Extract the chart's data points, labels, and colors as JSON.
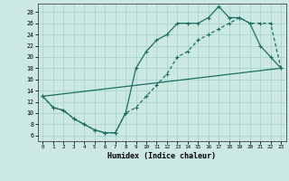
{
  "xlabel": "Humidex (Indice chaleur)",
  "background_color": "#cce8e2",
  "grid_color": "#a8d4cc",
  "line_color": "#1a6e64",
  "xlim": [
    -0.5,
    23.5
  ],
  "ylim": [
    5,
    29.5
  ],
  "xticks": [
    0,
    1,
    2,
    3,
    4,
    5,
    6,
    7,
    8,
    9,
    10,
    11,
    12,
    13,
    14,
    15,
    16,
    17,
    18,
    19,
    20,
    21,
    22,
    23
  ],
  "yticks": [
    6,
    8,
    10,
    12,
    14,
    16,
    18,
    20,
    22,
    24,
    26,
    28
  ],
  "line1_x": [
    0,
    1,
    2,
    3,
    4,
    5,
    6,
    7,
    8,
    9,
    10,
    11,
    12,
    13,
    14,
    15,
    16,
    17,
    18,
    19,
    20,
    21,
    22,
    23
  ],
  "line1_y": [
    13,
    11,
    10.5,
    9,
    8,
    7,
    6.5,
    6.5,
    10,
    18,
    21,
    23,
    24,
    26,
    26,
    26,
    27,
    29,
    27,
    27,
    26,
    22,
    20,
    18
  ],
  "line2_x": [
    0,
    1,
    2,
    3,
    4,
    5,
    6,
    7,
    8,
    9,
    10,
    11,
    12,
    13,
    14,
    15,
    16,
    17,
    18,
    19,
    20,
    21,
    22,
    23
  ],
  "line2_y": [
    13,
    11,
    10.5,
    9,
    8,
    7,
    6.5,
    6.5,
    10,
    11,
    13,
    15,
    17,
    20,
    21,
    23,
    24,
    25,
    26,
    27,
    26,
    26,
    26,
    18
  ],
  "line3_x": [
    0,
    23
  ],
  "line3_y": [
    13,
    18
  ]
}
